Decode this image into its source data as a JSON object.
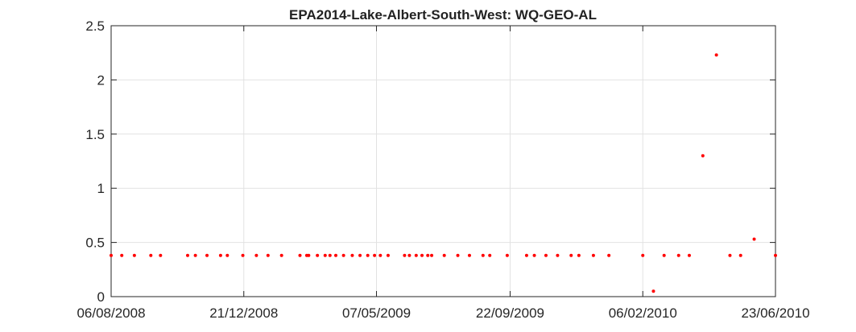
{
  "chart_data": {
    "type": "scatter",
    "title": "EPA2014-Lake-Albert-South-West: WQ-GEO-AL",
    "xlabel": "",
    "ylabel": "",
    "x_type": "date",
    "xlim": [
      "2008-08-06",
      "2010-06-23"
    ],
    "ylim": [
      0,
      2.5
    ],
    "x_ticks": [
      "2008-08-06",
      "2008-12-21",
      "2009-05-07",
      "2009-09-22",
      "2010-02-06",
      "2010-06-23"
    ],
    "x_tick_labels": [
      "06/08/2008",
      "21/12/2008",
      "07/05/2009",
      "22/09/2009",
      "06/02/2010",
      "23/06/2010"
    ],
    "y_ticks": [
      0,
      0.5,
      1,
      1.5,
      2,
      2.5
    ],
    "y_tick_labels": [
      "0",
      "0.5",
      "1",
      "1.5",
      "2",
      "2.5"
    ],
    "grid": true,
    "legend": "none",
    "marker_color": "#ff0000",
    "series": [
      {
        "x": [
          "2008-08-06",
          "2008-08-17",
          "2008-08-30",
          "2008-09-16",
          "2008-09-26",
          "2008-10-24",
          "2008-11-01",
          "2008-11-13",
          "2008-11-27",
          "2008-12-04",
          "2008-12-20",
          "2009-01-03",
          "2009-01-15",
          "2009-01-29",
          "2009-02-17",
          "2009-02-24",
          "2009-02-26",
          "2009-03-07",
          "2009-03-15",
          "2009-03-20",
          "2009-03-26",
          "2009-04-03",
          "2009-04-12",
          "2009-04-20",
          "2009-04-28",
          "2009-05-05",
          "2009-05-11",
          "2009-05-19",
          "2009-06-05",
          "2009-06-10",
          "2009-06-17",
          "2009-06-23",
          "2009-06-29",
          "2009-07-03",
          "2009-07-16",
          "2009-07-30",
          "2009-08-11",
          "2009-08-25",
          "2009-09-01",
          "2009-09-19",
          "2009-10-09",
          "2009-10-17",
          "2009-10-29",
          "2009-11-10",
          "2009-11-24",
          "2009-12-02",
          "2009-12-17",
          "2010-01-02",
          "2010-02-06",
          "2010-02-17",
          "2010-02-28",
          "2010-03-15",
          "2010-03-26",
          "2010-04-09",
          "2010-04-23",
          "2010-05-07",
          "2010-05-18",
          "2010-06-01",
          "2010-06-23"
        ],
        "y": [
          0.38,
          0.38,
          0.38,
          0.38,
          0.38,
          0.38,
          0.38,
          0.38,
          0.38,
          0.38,
          0.38,
          0.38,
          0.38,
          0.38,
          0.38,
          0.38,
          0.38,
          0.38,
          0.38,
          0.38,
          0.38,
          0.38,
          0.38,
          0.38,
          0.38,
          0.38,
          0.38,
          0.38,
          0.38,
          0.38,
          0.38,
          0.38,
          0.38,
          0.38,
          0.38,
          0.38,
          0.38,
          0.38,
          0.38,
          0.38,
          0.38,
          0.38,
          0.38,
          0.38,
          0.38,
          0.38,
          0.38,
          0.38,
          0.38,
          0.05,
          0.38,
          0.38,
          0.38,
          1.3,
          2.23,
          0.38,
          0.38,
          0.53,
          0.38
        ]
      }
    ]
  }
}
